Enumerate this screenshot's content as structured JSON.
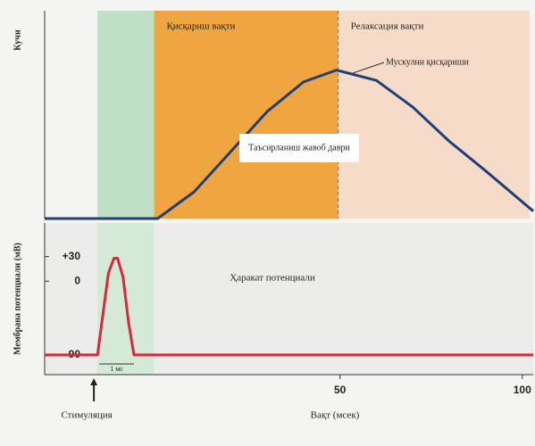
{
  "chart_data": [
    {
      "type": "line",
      "y_label": "Кучи",
      "xlim": [
        -31,
        103
      ],
      "ylim": [
        0,
        140
      ],
      "regions": [
        {
          "start": -16.5,
          "end": -1,
          "color": "#bfe0c4"
        },
        {
          "start": -1,
          "end": 49.5,
          "label": "Қисқариш вақти",
          "color": "#f0a640"
        },
        {
          "start": 49.5,
          "end": 102,
          "label": "Релаксация вақти",
          "color": "#f6dcc8"
        }
      ],
      "series": [
        {
          "name": "Мускулни қисқариши",
          "color": "#1f3f78",
          "x": [
            -31,
            0,
            10,
            20,
            30,
            40,
            49,
            60,
            70,
            80,
            90,
            103
          ],
          "values": [
            0,
            0,
            18,
            45,
            72,
            92,
            100,
            93,
            75,
            52,
            32,
            5
          ]
        }
      ],
      "annotation": "Таъсирланиш жавоб даври"
    },
    {
      "type": "line",
      "title": "Ҳаракат потенциали",
      "y_label": "Мембрана потенциали (мВ)",
      "x_label": "Вақт (мсек)",
      "xlim": [
        -31,
        103
      ],
      "ylim": [
        -114,
        71
      ],
      "xticks": [
        50,
        100
      ],
      "yticks": [
        {
          "value": 30,
          "label": "+30"
        },
        0,
        -90
      ],
      "series": [
        {
          "color": "#d8283c",
          "x": [
            -31,
            -16.5,
            -15,
            -13.5,
            -12,
            -11,
            -9.5,
            -8,
            -6.5,
            103
          ],
          "values": [
            -90,
            -90,
            -40,
            10,
            28,
            28,
            5,
            -50,
            -90,
            -90
          ]
        }
      ],
      "stimulus": {
        "x": -17.5,
        "label": "Стимуляция"
      },
      "scale_bar": {
        "start": -16,
        "end": -6.5,
        "label": "1 мс"
      }
    }
  ]
}
